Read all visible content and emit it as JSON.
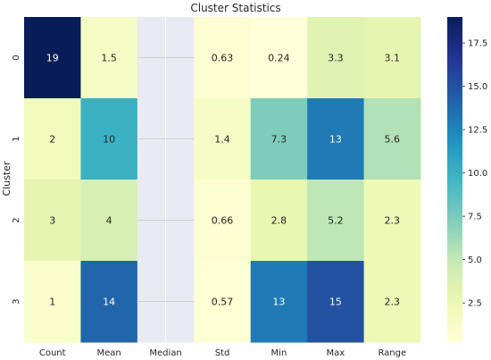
{
  "chart_data": {
    "type": "heatmap",
    "title": "Cluster Statistics",
    "xlabel": "",
    "ylabel": "Cluster",
    "columns": [
      "Count",
      "Mean",
      "Median",
      "Std",
      "Min",
      "Max",
      "Range"
    ],
    "rows": [
      "0",
      "1",
      "2",
      "3"
    ],
    "values": [
      [
        19,
        1.5,
        null,
        0.63,
        0.24,
        3.3,
        3.1
      ],
      [
        2,
        10,
        null,
        1.4,
        7.3,
        13,
        5.6
      ],
      [
        3,
        4,
        null,
        0.66,
        2.8,
        5.2,
        2.3
      ],
      [
        1,
        14,
        null,
        0.57,
        13,
        15,
        2.3
      ]
    ],
    "labels": [
      [
        "19",
        "1.5",
        "",
        "0.63",
        "0.24",
        "3.3",
        "3.1"
      ],
      [
        "2",
        "10",
        "",
        "1.4",
        "7.3",
        "13",
        "5.6"
      ],
      [
        "3",
        "4",
        "",
        "0.66",
        "2.8",
        "5.2",
        "2.3"
      ],
      [
        "1",
        "14",
        "",
        "0.57",
        "13",
        "15",
        "2.3"
      ]
    ],
    "colorbar": {
      "min": 0.24,
      "max": 19,
      "ticks": [
        2.5,
        5.0,
        7.5,
        10.0,
        12.5,
        15.0,
        17.5
      ],
      "tick_labels": [
        "2.5",
        "5.0",
        "7.5",
        "10.0",
        "12.5",
        "15.0",
        "17.5"
      ],
      "colormap": "YlGnBu"
    },
    "missing_color": "#eaeaf2",
    "grid": true
  }
}
